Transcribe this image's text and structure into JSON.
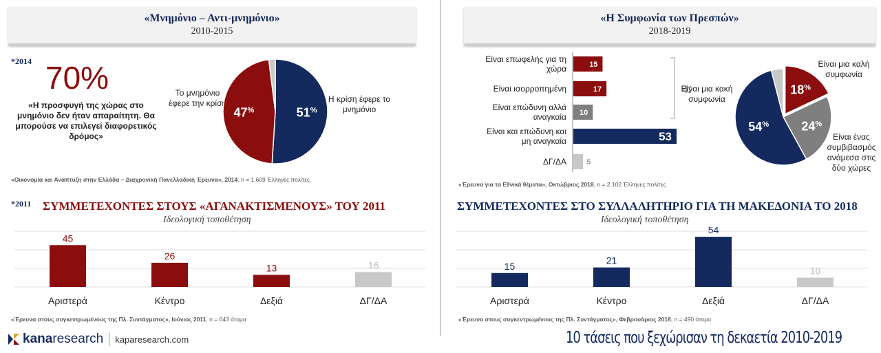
{
  "left_top": {
    "title": "«Μνημόνιο – Αντι-μνημόνιο»",
    "years": "2010-2015",
    "year_tag": "*2014",
    "big_percent": "70%",
    "quote": "«Η προσφυγή της χώρας στο μνημόνιο δεν ήταν απαραίτητη. Θα μπορούσε να επιλεγεί διαφορετικός δρόμος»",
    "source_bold": "«Οικονομία και Ανάπτυξη στην Ελλάδα – Διαχρονική Πανελλαδική Έρευνα», 2014",
    "source_rest": ", n = 1.609 Έλληνες πολίτες"
  },
  "right_top": {
    "title": "«Η Συμφωνία των Πρεσπών»",
    "years": "2018-2019",
    "bracket_label": "42%",
    "source_bold": "«Έρευνα για τα Εθνικά θέματα», Οκτώβριος 2018",
    "source_rest": ", n = 2.102 Έλληνες πολίτες"
  },
  "left_bottom": {
    "year_tag": "*2011",
    "title": "ΣΥΜΜΕΤΕΧΟΝΤΕΣ ΣΤΟΥΣ «ΑΓΑΝΑΚΤΙΣΜΕΝΟΥΣ» ΤΟΥ 2011",
    "subtitle": "Ιδεολογική τοποθέτηση",
    "source_bold": "«Έρευνα στους συγκεντρωμένους της Πλ. Συντάγματος», Ιούνιος 2011",
    "source_rest": ", n = 643 άτομα"
  },
  "right_bottom": {
    "title": "ΣΥΜΜΕΤΕΧΟΝΤΕΣ ΣΤΟ ΣΥΛΛΑΛΗΤΗΡΙΟ ΓΙΑ ΤΗ ΜΑΚΕΔΟΝΙΑ ΤΟ 2018",
    "subtitle": "Ιδεολογική τοποθέτηση",
    "source_bold": "«Έρευνα στους συγκεντρωμένους της Πλ. Συντάγματος», Φεβρουάριος 2018",
    "source_rest": ", n = 490 άτομα"
  },
  "footer": {
    "logo_a": "kana",
    "logo_b": "research",
    "url": "kaparesearch.com",
    "tagline": "10 τάσεις που ξεχώρισαν τη δεκαετία 2010-2019"
  },
  "colors": {
    "red": "#8b0d0d",
    "navy": "#142a5e",
    "gray": "#7f7f7f",
    "lightgray": "#c8c8c8"
  },
  "chart_data": [
    {
      "type": "pie",
      "labels": [
        "Η κρίση έφερε το μνημόνιο",
        "Το μνημόνιο έφερε την κρίση",
        ""
      ],
      "values": [
        51,
        47,
        2
      ],
      "value_labels": [
        "51%",
        "47%",
        ""
      ]
    },
    {
      "type": "bar",
      "orientation": "horizontal",
      "categories": [
        "Είναι επωφελής για τη χώρα",
        "Είναι ισορροπημένη",
        "Είναι επώδυνη αλλά αναγκαία",
        "Είναι και επώδυνη και μη αναγκαία",
        "ΔΓ/ΔΑ"
      ],
      "values": [
        15,
        17,
        10,
        53,
        5
      ]
    },
    {
      "type": "pie",
      "labels": [
        "Είναι μια καλή συμφωνία",
        "Είναι ένας συμβιβασμός ανάμεσα στις δύο χώρες",
        "Είναι μια κακή συμφωνία",
        ""
      ],
      "values": [
        18,
        24,
        54,
        4
      ],
      "value_labels": [
        "18%",
        "24%",
        "54%",
        ""
      ]
    },
    {
      "type": "bar",
      "categories": [
        "Αριστερά",
        "Κέντρο",
        "Δεξιά",
        "ΔΓ/ΔΑ"
      ],
      "values": [
        45,
        26,
        13,
        16
      ],
      "ylim": [
        0,
        60
      ]
    },
    {
      "type": "bar",
      "categories": [
        "Αριστερά",
        "Κέντρο",
        "Δεξιά",
        "ΔΓ/ΔΑ"
      ],
      "values": [
        15,
        21,
        54,
        10
      ],
      "ylim": [
        0,
        60
      ]
    }
  ]
}
